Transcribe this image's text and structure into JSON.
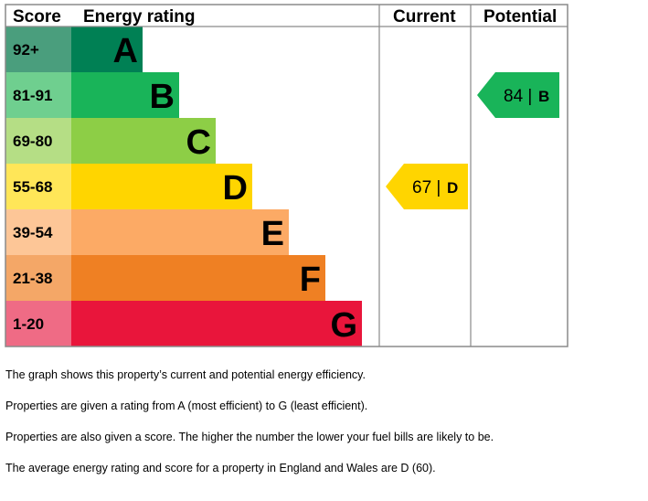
{
  "chart_data": {
    "type": "bar",
    "headers": {
      "score": "Score",
      "rating": "Energy rating",
      "current": "Current",
      "potential": "Potential"
    },
    "bands": [
      {
        "range": "92+",
        "letter": "A",
        "color": "#008054",
        "score_color": "#4a9e7d"
      },
      {
        "range": "81-91",
        "letter": "B",
        "color": "#19b459",
        "score_color": "#6fcf8f"
      },
      {
        "range": "69-80",
        "letter": "C",
        "color": "#8dce46",
        "score_color": "#b5de85"
      },
      {
        "range": "55-68",
        "letter": "D",
        "color": "#ffd500",
        "score_color": "#ffe658"
      },
      {
        "range": "39-54",
        "letter": "E",
        "color": "#fcaa65",
        "score_color": "#fdc697"
      },
      {
        "range": "21-38",
        "letter": "F",
        "color": "#ef8023",
        "score_color": "#f4a767"
      },
      {
        "range": "1-20",
        "letter": "G",
        "color": "#e9153b",
        "score_color": "#ef6b85"
      }
    ],
    "current": {
      "score": 67,
      "letter": "D",
      "color": "#ffd500"
    },
    "potential": {
      "score": 84,
      "letter": "B",
      "color": "#19b459"
    }
  },
  "notes": [
    "The graph shows this property’s current and potential energy efficiency.",
    "Properties are given a rating from A (most efficient) to G (least efficient).",
    "Properties are also given a score. The higher the number the lower your fuel bills are likely to be.",
    "The average energy rating and score for a property in England and Wales are D (60)."
  ]
}
